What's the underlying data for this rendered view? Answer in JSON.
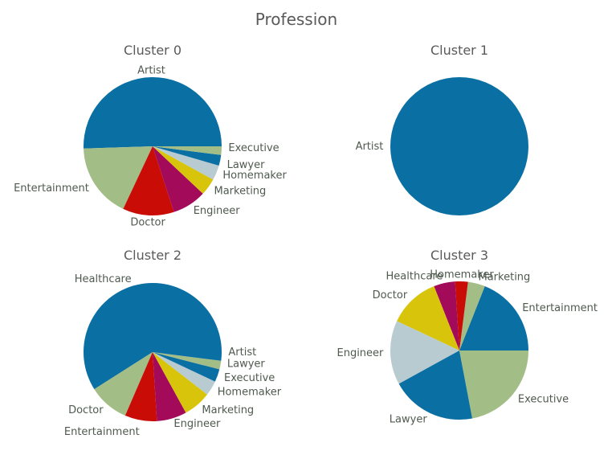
{
  "figure": {
    "title": "Profession"
  },
  "colors": [
    "#0a6fa3",
    "#a2bd86",
    "#c90d06",
    "#a30a5a",
    "#d8c40a",
    "#b8cbd0",
    "#0a6fa3",
    "#a2bd86"
  ],
  "chart_data": [
    {
      "type": "pie",
      "title": "Cluster 0",
      "categories": [
        "Artist",
        "Entertainment",
        "Doctor",
        "Engineer",
        "Marketing",
        "Homemaker",
        "Lawyer",
        "Executive"
      ],
      "values": [
        50.5,
        17.5,
        12.0,
        8.0,
        4.0,
        3.5,
        2.5,
        2.0
      ]
    },
    {
      "type": "pie",
      "title": "Cluster 1",
      "categories": [
        "Artist"
      ],
      "values": [
        100
      ]
    },
    {
      "type": "pie",
      "title": "Cluster 2",
      "categories": [
        "Healthcare",
        "Doctor",
        "Entertainment",
        "Engineer",
        "Marketing",
        "Homemaker",
        "Executive",
        "Lawyer",
        "Artist"
      ],
      "values": [
        59.0,
        9.5,
        7.5,
        7.0,
        6.5,
        3.5,
        3.0,
        2.0,
        2.0
      ]
    },
    {
      "type": "pie",
      "title": "Cluster 3",
      "categories": [
        "Entertainment",
        "Marketing",
        "Homemaker",
        "Healthcare",
        "Doctor",
        "Engineer",
        "Lawyer",
        "Executive"
      ],
      "values": [
        19.0,
        4.0,
        3.0,
        5.0,
        12.0,
        15.0,
        20.0,
        22.0
      ]
    }
  ]
}
